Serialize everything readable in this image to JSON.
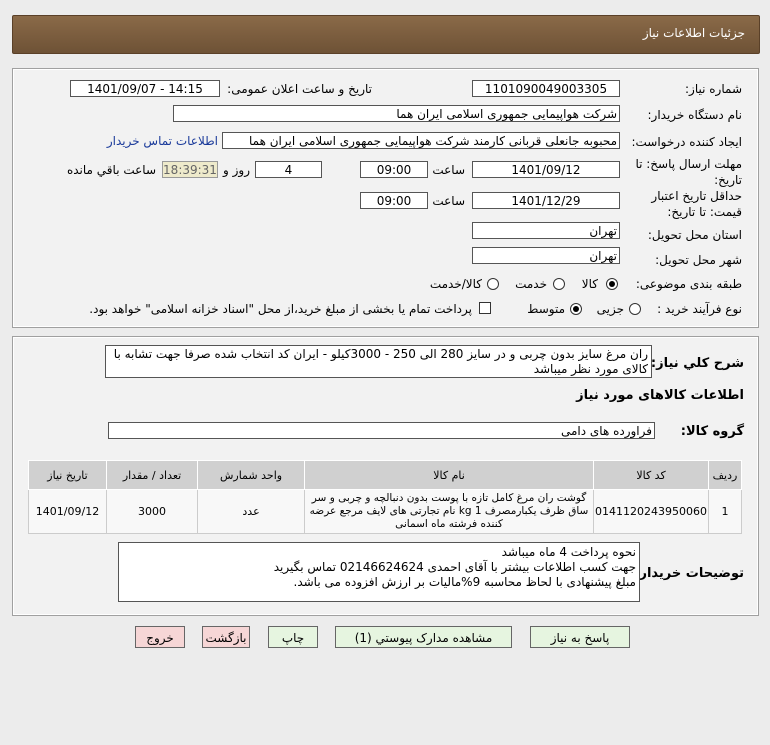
{
  "header": {
    "title": "جزئیات اطلاعات نیاز"
  },
  "form": {
    "need_number_label": "شماره نیاز:",
    "need_number": "1101090049003305",
    "announce_label": "تاریخ و ساعت اعلان عمومی:",
    "announce_value": "1401/09/07 - 14:15",
    "buyer_label": "نام دستگاه خریدار:",
    "buyer": "شرکت هواپیمایی جمهوری اسلامی ایران هما",
    "creator_label": "ایجاد کننده درخواست:",
    "creator": "محبوبه جانعلی قربانی کارمند شرکت هواپیمایی جمهوری اسلامی ایران هما",
    "contact_link": "اطلاعات تماس خریدار",
    "deadline_label": "مهلت ارسال پاسخ: تا تاریخ:",
    "deadline_date": "1401/09/12",
    "time_label": "ساعت",
    "deadline_time": "09:00",
    "days": "4",
    "days_label": "روز و",
    "remaining": "18:39:31",
    "remaining_label": "ساعت باقي مانده",
    "validity_label": "حداقل تاریخ اعتبار قیمت: تا تاریخ:",
    "validity_date": "1401/12/29",
    "validity_time": "09:00",
    "province_label": "استان محل تحویل:",
    "province": "تهران",
    "city_label": "شهر محل تحویل:",
    "city": "تهران",
    "category_label": "طبقه بندی موضوعی:",
    "category_options": [
      "کالا",
      "خدمت",
      "کالا/خدمت"
    ],
    "category_selected": "کالا",
    "process_label": "نوع فرآیند خرید :",
    "process_options": [
      "جزیی",
      "متوسط"
    ],
    "process_selected": "متوسط",
    "payment_note": "پرداخت تمام یا بخشی از مبلغ خرید،از محل \"اسناد خزانه اسلامی\" خواهد بود.",
    "payment_checked": false
  },
  "details": {
    "desc_label": "شرح کلي نیاز:",
    "desc": "ران مرغ سایز بدون چربی و در سایز 280 الی 250  - 3000کیلو - ایران کد انتخاب شده صرفا جهت تشابه با کالای مورد نظر میباشد",
    "goods_title": "اطلاعات کالاهای مورد نیاز",
    "group_label": "گروه کالا:",
    "group": "فراورده های دامی",
    "table": {
      "headers": [
        "ردیف",
        "کد کالا",
        "نام کالا",
        "واحد شمارش",
        "تعداد / مقدار",
        "تاریخ نیاز"
      ],
      "rows": [
        [
          "1",
          "0141120243950060",
          "گوشت ران مرغ کامل تازه با پوست بدون دنبالچه و چربی و سر ساق ظرف یکبارمصرف 1 kg نام تجارتی های لایف مرجع عرضه کننده فرشته ماه اسمانی",
          "عدد",
          "3000",
          "1401/09/12"
        ]
      ]
    },
    "notes_label": "توضیحات خریدار:",
    "notes": [
      "نحوه پرداخت  4 ماه میباشد",
      "جهت کسب اطلاعات بیشتر با آقای احمدی  02146624624 تماس بگیرید",
      "مبلغ پیشنهادی با لحاظ محاسبه 9%مالیات بر ارزش افزوده می باشد."
    ]
  },
  "buttons": {
    "reply": "پاسخ به نیاز",
    "attachments": "مشاهده مدارک پیوستي (1)",
    "print": "چاپ",
    "back": "بازگشت",
    "exit": "خروج"
  }
}
